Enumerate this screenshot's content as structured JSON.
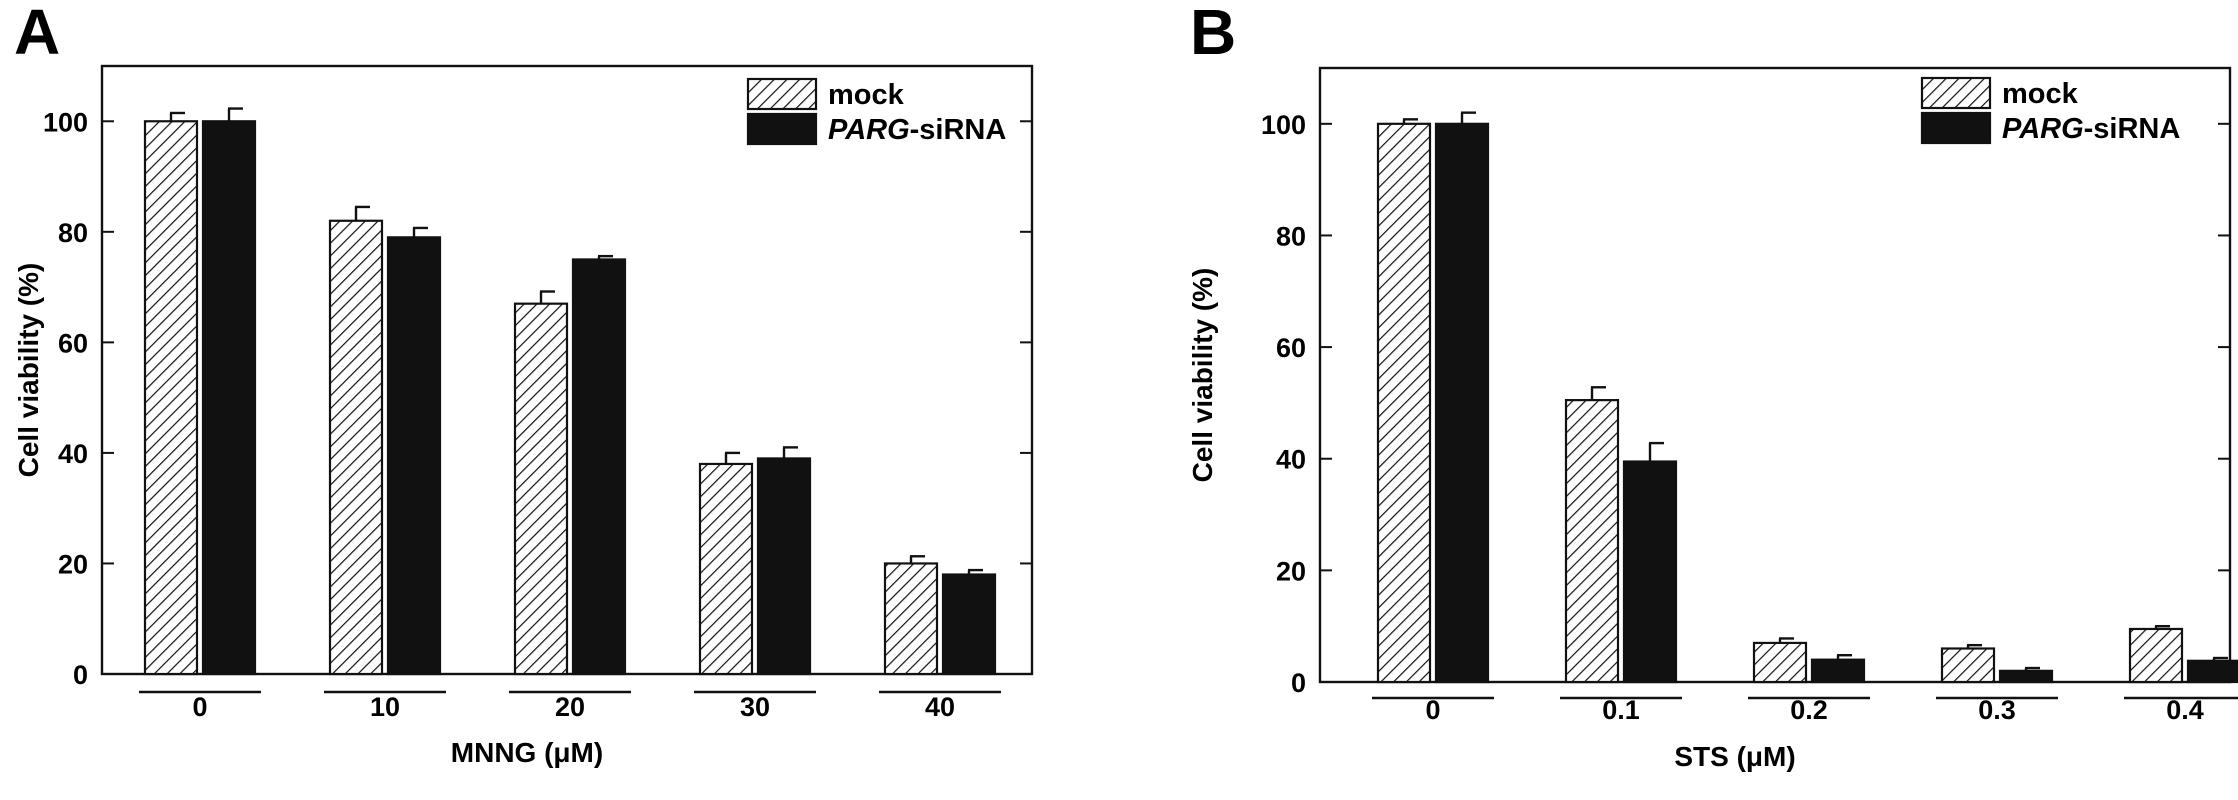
{
  "chart_data": [
    {
      "panel": "A",
      "type": "bar",
      "xlabel": "MNNG (μM)",
      "ylabel": "Cell viability (%)",
      "ylim": [
        0,
        110
      ],
      "yticks": [
        "0",
        "20",
        "40",
        "60",
        "80",
        "100"
      ],
      "categories": [
        "0",
        "10",
        "20",
        "30",
        "40"
      ],
      "series": [
        {
          "name": "mock",
          "pattern": "hatched",
          "values": [
            100,
            82,
            67,
            38,
            20
          ],
          "errors": [
            1.5,
            2.5,
            2.2,
            2.0,
            1.3
          ]
        },
        {
          "name": "PARG-siRNA",
          "pattern": "solid",
          "color": "#111111",
          "values": [
            100,
            79,
            75,
            39,
            18
          ],
          "errors": [
            2.3,
            1.7,
            0.6,
            2.0,
            0.8
          ]
        }
      ],
      "legend": "top-right",
      "legend_labels": [
        {
          "italic": "",
          "rest": "mock"
        },
        {
          "italic": "PARG",
          "rest": "-siRNA"
        }
      ]
    },
    {
      "panel": "B",
      "type": "bar",
      "xlabel": "STS (μM)",
      "ylabel": "Cell viability (%)",
      "ylim": [
        0,
        110
      ],
      "yticks": [
        "0",
        "20",
        "40",
        "60",
        "80",
        "100"
      ],
      "categories": [
        "0",
        "0.1",
        "0.2",
        "0.3",
        "0.4"
      ],
      "series": [
        {
          "name": "mock",
          "pattern": "hatched",
          "values": [
            100,
            50.5,
            7,
            6,
            9.5
          ],
          "errors": [
            0.8,
            2.3,
            0.8,
            0.6,
            0.5
          ]
        },
        {
          "name": "PARG-siRNA",
          "pattern": "solid",
          "color": "#111111",
          "values": [
            100,
            39.5,
            4,
            2,
            3.8
          ],
          "errors": [
            2.0,
            3.3,
            0.8,
            0.5,
            0.5
          ]
        }
      ],
      "legend": "top-right",
      "legend_labels": [
        {
          "italic": "",
          "rest": "mock"
        },
        {
          "italic": "PARG",
          "rest": "-siRNA"
        }
      ]
    }
  ]
}
